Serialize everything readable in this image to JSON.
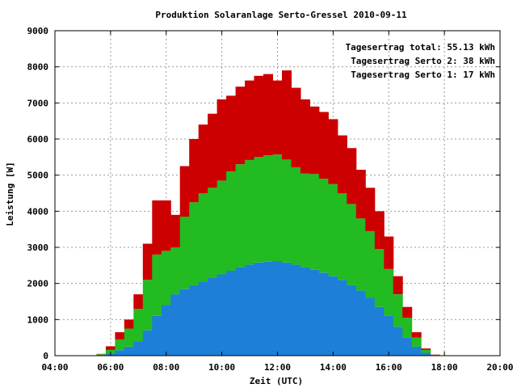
{
  "chart_data": {
    "type": "bar",
    "stacked": true,
    "title": "Produktion Solaranlage Serto-Gressel 2010-09-11",
    "xlabel": "Zeit (UTC)",
    "ylabel": "Leistung [W]",
    "xlim": [
      "04:00",
      "20:00"
    ],
    "ylim": [
      0,
      9000
    ],
    "x_ticks": [
      "04:00",
      "06:00",
      "08:00",
      "10:00",
      "12:00",
      "14:00",
      "16:00",
      "18:00",
      "20:00"
    ],
    "y_ticks": [
      "0",
      "1000",
      "2000",
      "3000",
      "4000",
      "5000",
      "6000",
      "7000",
      "8000",
      "9000"
    ],
    "grid": true,
    "legend_position": "top-right",
    "legend": [
      {
        "label": "Tagesertrag total: 55.13 kWh",
        "color": "#cc0000"
      },
      {
        "label": "Tagesertrag Serto 2: 38 kWh",
        "color": "#22bb22"
      },
      {
        "label": "Tagesertrag Serto 1: 17 kWh",
        "color": "#1e7fd8"
      }
    ],
    "series": [
      {
        "name": "Serto 1",
        "color": "#1e7fd8",
        "x": [
          "05:40",
          "06:00",
          "06:20",
          "06:40",
          "07:00",
          "07:20",
          "07:40",
          "08:00",
          "08:20",
          "08:40",
          "09:00",
          "09:20",
          "09:40",
          "10:00",
          "10:20",
          "10:40",
          "11:00",
          "11:20",
          "11:40",
          "12:00",
          "12:20",
          "12:40",
          "13:00",
          "13:20",
          "13:40",
          "14:00",
          "14:20",
          "14:40",
          "15:00",
          "15:20",
          "15:40",
          "16:00",
          "16:20",
          "16:40",
          "17:00",
          "17:20",
          "17:40"
        ],
        "values": [
          20,
          60,
          150,
          250,
          400,
          700,
          1100,
          1400,
          1700,
          1850,
          1950,
          2050,
          2150,
          2250,
          2350,
          2450,
          2520,
          2580,
          2600,
          2620,
          2580,
          2520,
          2450,
          2380,
          2300,
          2200,
          2100,
          1950,
          1800,
          1600,
          1350,
          1100,
          800,
          500,
          250,
          80,
          10
        ]
      },
      {
        "name": "Serto 2",
        "color": "#22bb22",
        "x": [
          "05:40",
          "06:00",
          "06:20",
          "06:40",
          "07:00",
          "07:20",
          "07:40",
          "08:00",
          "08:20",
          "08:40",
          "09:00",
          "09:20",
          "09:40",
          "10:00",
          "10:20",
          "10:40",
          "11:00",
          "11:20",
          "11:40",
          "12:00",
          "12:20",
          "12:40",
          "13:00",
          "13:20",
          "13:40",
          "14:00",
          "14:20",
          "14:40",
          "15:00",
          "15:20",
          "15:40",
          "16:00",
          "16:20",
          "16:40",
          "17:00",
          "17:20",
          "17:40"
        ],
        "values": [
          20,
          100,
          300,
          500,
          900,
          1400,
          1700,
          1500,
          1300,
          2000,
          2300,
          2450,
          2500,
          2600,
          2750,
          2850,
          2900,
          2920,
          2950,
          2950,
          2850,
          2700,
          2600,
          2650,
          2600,
          2550,
          2400,
          2250,
          2000,
          1850,
          1600,
          1300,
          900,
          550,
          250,
          80,
          10
        ]
      },
      {
        "name": "Serto 3",
        "color": "#cc0000",
        "x": [
          "05:40",
          "06:00",
          "06:20",
          "06:40",
          "07:00",
          "07:20",
          "07:40",
          "08:00",
          "08:20",
          "08:40",
          "09:00",
          "09:20",
          "09:40",
          "10:00",
          "10:20",
          "10:40",
          "11:00",
          "11:20",
          "11:40",
          "12:00",
          "12:20",
          "12:40",
          "13:00",
          "13:20",
          "13:40",
          "14:00",
          "14:20",
          "14:40",
          "15:00",
          "15:20",
          "15:40",
          "16:00",
          "16:20",
          "16:40",
          "17:00",
          "17:20",
          "17:40"
        ],
        "values": [
          10,
          100,
          200,
          250,
          400,
          1000,
          1500,
          1400,
          900,
          1400,
          1750,
          1900,
          2050,
          2250,
          2100,
          2150,
          2200,
          2250,
          2250,
          2050,
          2470,
          2200,
          2050,
          1870,
          1850,
          1800,
          1600,
          1550,
          1350,
          1200,
          1050,
          900,
          500,
          300,
          150,
          40,
          10
        ]
      }
    ]
  }
}
